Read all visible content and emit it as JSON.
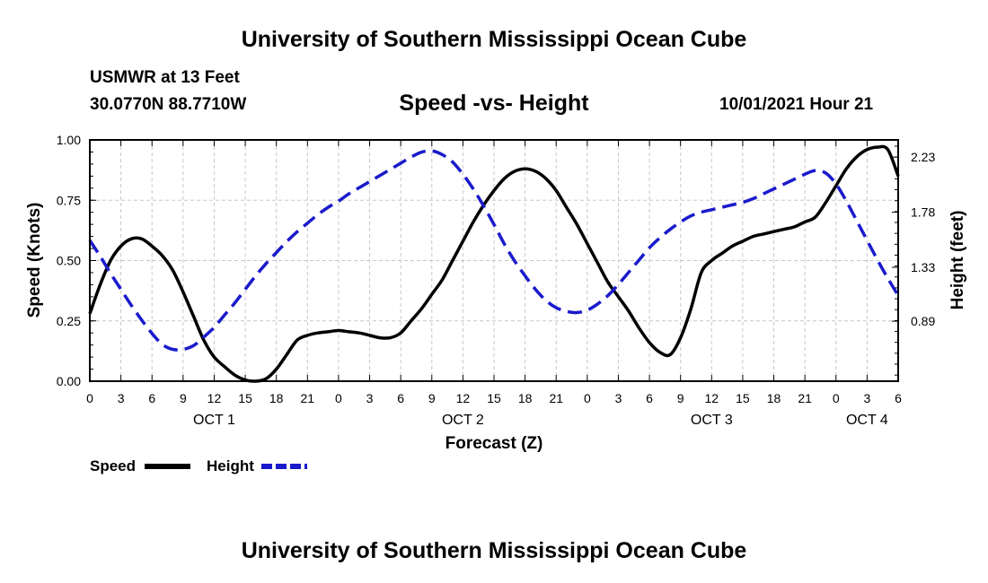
{
  "header": {
    "title": "University of Southern Mississippi Ocean Cube",
    "station": "USMWR at 13 Feet",
    "coordinates": "30.0770N  88.7710W",
    "subtitle": "Speed -vs- Height",
    "datetime": "10/01/2021 Hour 21"
  },
  "footer": {
    "title": "University of Southern Mississippi Ocean Cube"
  },
  "chart_data": {
    "type": "line",
    "xlabel": "Forecast (Z)",
    "ylabel": "Speed (Knots)",
    "y2label": "Height (feet)",
    "xlim": [
      0,
      78
    ],
    "ylim": [
      0,
      1.0
    ],
    "y2lim": [
      0.4,
      2.37
    ],
    "grid": true,
    "x_tick_labels": [
      "0",
      "3",
      "6",
      "9",
      "12",
      "15",
      "18",
      "21",
      "0",
      "3",
      "6",
      "9",
      "12",
      "15",
      "18",
      "21",
      "0",
      "3",
      "6",
      "9",
      "12",
      "15",
      "18",
      "21",
      "0",
      "3",
      "6"
    ],
    "day_labels": [
      {
        "hour": 12,
        "label": "OCT 1"
      },
      {
        "hour": 36,
        "label": "OCT 2"
      },
      {
        "hour": 60,
        "label": "OCT 3"
      },
      {
        "hour": 75,
        "label": "OCT 4"
      }
    ],
    "y_ticks": [
      0.0,
      0.25,
      0.5,
      0.75,
      1.0
    ],
    "y_tick_labels": [
      "0.00",
      "0.25",
      "0.50",
      "0.75",
      "1.00"
    ],
    "y2_ticks": [
      0.89,
      1.33,
      1.78,
      2.23
    ],
    "y2_tick_labels": [
      "0.89",
      "1.33",
      "1.78",
      "2.23"
    ],
    "series": [
      {
        "name": "Speed",
        "axis": "left",
        "color": "#000000",
        "dash": "solid",
        "x": [
          0,
          1,
          2,
          3,
          4,
          5,
          6,
          7,
          8,
          9,
          10,
          11,
          12,
          13,
          14,
          15,
          16,
          17,
          18,
          19,
          20,
          21,
          22,
          23,
          24,
          25,
          26,
          27,
          28,
          29,
          30,
          31,
          32,
          33,
          34,
          35,
          36,
          37,
          38,
          39,
          40,
          41,
          42,
          43,
          44,
          45,
          46,
          47,
          48,
          49,
          50,
          51,
          52,
          53,
          54,
          55,
          56,
          57,
          58,
          59,
          60,
          61,
          62,
          63,
          64,
          65,
          66,
          67,
          68,
          69,
          70,
          71,
          72,
          73,
          74,
          75,
          76,
          77,
          78
        ],
        "values": [
          0.28,
          0.4,
          0.5,
          0.56,
          0.59,
          0.59,
          0.56,
          0.52,
          0.46,
          0.37,
          0.27,
          0.17,
          0.1,
          0.06,
          0.025,
          0.005,
          0.0,
          0.01,
          0.05,
          0.11,
          0.17,
          0.19,
          0.2,
          0.205,
          0.21,
          0.205,
          0.2,
          0.19,
          0.18,
          0.18,
          0.2,
          0.25,
          0.3,
          0.36,
          0.42,
          0.5,
          0.58,
          0.66,
          0.73,
          0.79,
          0.84,
          0.87,
          0.88,
          0.87,
          0.84,
          0.79,
          0.72,
          0.65,
          0.57,
          0.49,
          0.41,
          0.35,
          0.29,
          0.22,
          0.16,
          0.12,
          0.11,
          0.18,
          0.3,
          0.45,
          0.5,
          0.53,
          0.56,
          0.58,
          0.6,
          0.61,
          0.62,
          0.63,
          0.64,
          0.66,
          0.68,
          0.74,
          0.81,
          0.88,
          0.93,
          0.96,
          0.97,
          0.96,
          0.85
        ]
      },
      {
        "name": "Height",
        "axis": "right",
        "color": "#1a1acc",
        "dash": "dashed",
        "x": [
          0,
          1,
          2,
          3,
          4,
          5,
          6,
          7,
          8,
          9,
          10,
          11,
          12,
          13,
          14,
          15,
          16,
          17,
          18,
          19,
          20,
          21,
          22,
          23,
          24,
          25,
          26,
          27,
          28,
          29,
          30,
          31,
          32,
          33,
          34,
          35,
          36,
          37,
          38,
          39,
          40,
          41,
          42,
          43,
          44,
          45,
          46,
          47,
          48,
          49,
          50,
          51,
          52,
          53,
          54,
          55,
          56,
          57,
          58,
          59,
          60,
          61,
          62,
          63,
          64,
          65,
          66,
          67,
          68,
          69,
          70,
          71,
          72,
          73,
          74,
          75,
          76,
          77,
          78
        ],
        "values": [
          1.55,
          1.42,
          1.28,
          1.15,
          1.02,
          0.9,
          0.79,
          0.7,
          0.66,
          0.66,
          0.69,
          0.76,
          0.84,
          0.94,
          1.04,
          1.15,
          1.26,
          1.36,
          1.45,
          1.54,
          1.62,
          1.69,
          1.76,
          1.82,
          1.87,
          1.93,
          1.98,
          2.03,
          2.08,
          2.13,
          2.18,
          2.23,
          2.27,
          2.28,
          2.25,
          2.19,
          2.09,
          1.97,
          1.83,
          1.68,
          1.52,
          1.38,
          1.26,
          1.15,
          1.06,
          1.0,
          0.97,
          0.96,
          0.98,
          1.03,
          1.1,
          1.19,
          1.29,
          1.39,
          1.49,
          1.57,
          1.64,
          1.7,
          1.75,
          1.78,
          1.8,
          1.82,
          1.84,
          1.86,
          1.89,
          1.93,
          1.97,
          2.01,
          2.05,
          2.09,
          2.12,
          2.1,
          2.01,
          1.87,
          1.71,
          1.55,
          1.39,
          1.24,
          1.1
        ]
      }
    ],
    "legend": {
      "position": "bottom-left",
      "entries": [
        {
          "label": "Speed",
          "color": "#000000",
          "dash": "solid"
        },
        {
          "label": "Height",
          "color": "#1a1acc",
          "dash": "dashed"
        }
      ]
    }
  }
}
